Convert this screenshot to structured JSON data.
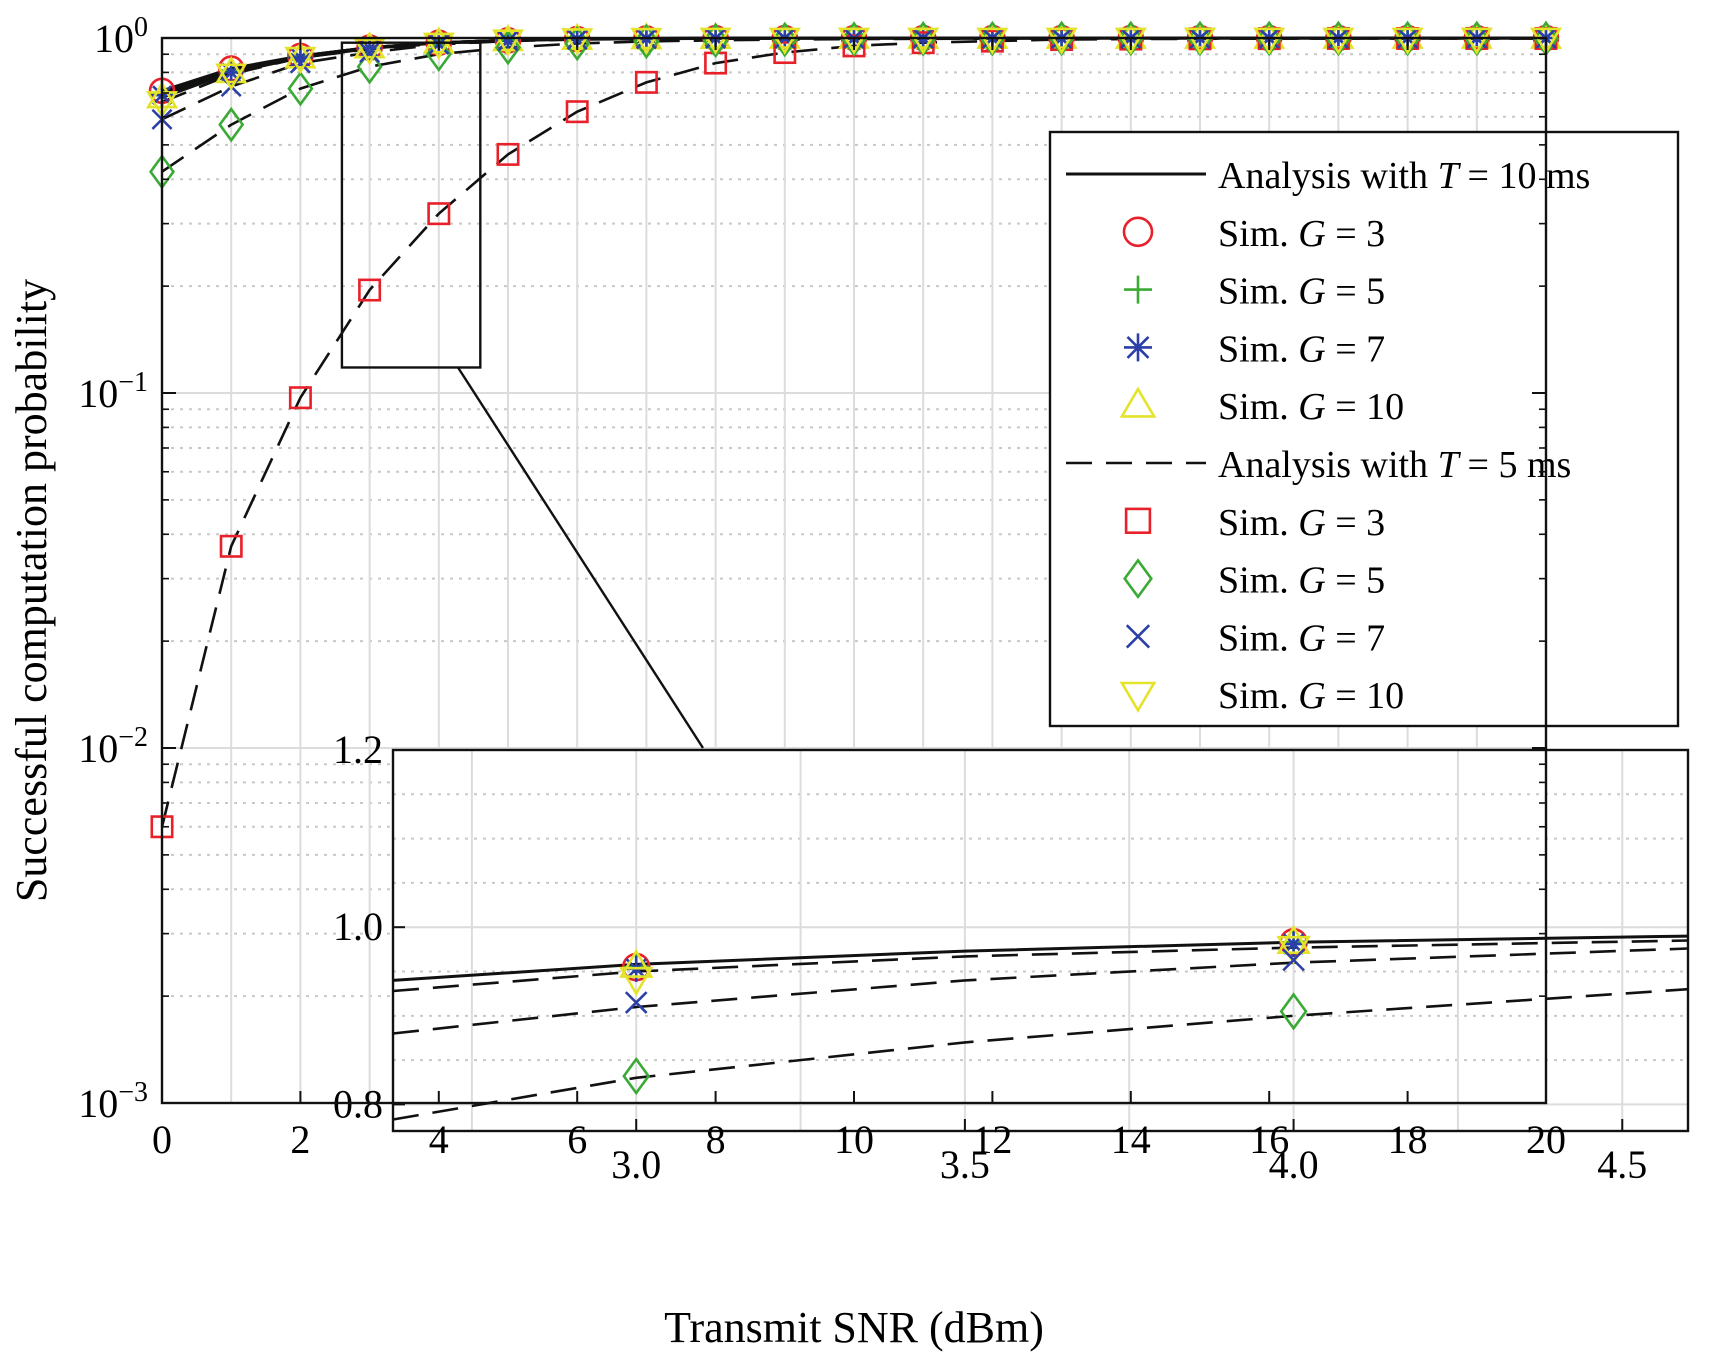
{
  "chart_data": [
    {
      "type": "line",
      "xlabel": "Transmit SNR (dBm)",
      "ylabel": "Successful computation probability",
      "yscale": "log",
      "xlim": [
        0,
        20
      ],
      "ylim": [
        0.001,
        1
      ],
      "grid": true,
      "legend_position": "top-right",
      "x_ticks": [
        "0",
        "2",
        "4",
        "6",
        "8",
        "10",
        "12",
        "14",
        "16",
        "18",
        "20"
      ],
      "y_ticks": [
        {
          "base": "10",
          "exp": "0"
        },
        {
          "base": "10",
          "exp": "−1"
        },
        {
          "base": "10",
          "exp": "−2"
        },
        {
          "base": "10",
          "exp": "−3"
        }
      ],
      "x": [
        0,
        1,
        2,
        3,
        4,
        5,
        6,
        7,
        8,
        9,
        10,
        11,
        12,
        13,
        14,
        15,
        16,
        17,
        18,
        19,
        20
      ],
      "legend": [
        {
          "prefix": "Analysis with",
          "var": "T",
          "val": "= 10 ms",
          "marker": "solid-line"
        },
        {
          "prefix": "Sim.",
          "var": "G",
          "val": "= 3",
          "marker": "circle"
        },
        {
          "prefix": "Sim.",
          "var": "G",
          "val": "= 5",
          "marker": "plus"
        },
        {
          "prefix": "Sim.",
          "var": "G",
          "val": "= 7",
          "marker": "asterisk"
        },
        {
          "prefix": "Sim.",
          "var": "G",
          "val": "= 10",
          "marker": "triangle-up"
        },
        {
          "prefix": "Analysis with",
          "var": "T",
          "val": "= 5 ms",
          "marker": "dashed-line"
        },
        {
          "prefix": "Sim.",
          "var": "G",
          "val": "= 3",
          "marker": "square"
        },
        {
          "prefix": "Sim.",
          "var": "G",
          "val": "= 5",
          "marker": "diamond"
        },
        {
          "prefix": "Sim.",
          "var": "G",
          "val": "= 7",
          "marker": "x"
        },
        {
          "prefix": "Sim.",
          "var": "G",
          "val": "= 10",
          "marker": "triangle-down"
        }
      ],
      "series": [
        {
          "group": "T=10",
          "G": 3,
          "style": "solid",
          "marker": "circle",
          "color": "#e8202a",
          "values": [
            0.71,
            0.82,
            0.89,
            0.94,
            0.97,
            0.985,
            0.993,
            0.997,
            0.999,
            1,
            1,
            1,
            1,
            1,
            1,
            1,
            1,
            1,
            1,
            1,
            1
          ]
        },
        {
          "group": "T=10",
          "G": 5,
          "style": "solid",
          "marker": "plus",
          "color": "#3aaa35",
          "values": [
            0.7,
            0.81,
            0.89,
            0.94,
            0.97,
            0.985,
            0.993,
            0.997,
            0.999,
            1,
            1,
            1,
            1,
            1,
            1,
            1,
            1,
            1,
            1,
            1,
            1
          ]
        },
        {
          "group": "T=10",
          "G": 7,
          "style": "solid",
          "marker": "asterisk",
          "color": "#2b3fa8",
          "values": [
            0.69,
            0.8,
            0.88,
            0.935,
            0.97,
            0.985,
            0.993,
            0.997,
            0.999,
            1,
            1,
            1,
            1,
            1,
            1,
            1,
            1,
            1,
            1,
            1,
            1
          ]
        },
        {
          "group": "T=10",
          "G": 10,
          "style": "solid",
          "marker": "triangle-up",
          "color": "#e3e32a",
          "values": [
            0.68,
            0.8,
            0.88,
            0.94,
            0.97,
            0.985,
            0.993,
            0.997,
            0.999,
            1,
            1,
            1,
            1,
            1,
            1,
            1,
            1,
            1,
            1,
            1,
            1
          ]
        },
        {
          "group": "T=5",
          "G": 3,
          "style": "dashed",
          "marker": "square",
          "color": "#e8202a",
          "values": [
            0.006,
            0.037,
            0.097,
            0.195,
            0.32,
            0.47,
            0.62,
            0.75,
            0.85,
            0.91,
            0.95,
            0.97,
            0.98,
            0.99,
            0.993,
            0.995,
            0.996,
            0.997,
            0.997,
            0.997,
            0.997
          ]
        },
        {
          "group": "T=5",
          "G": 5,
          "style": "dashed",
          "marker": "diamond",
          "color": "#3aaa35",
          "values": [
            0.42,
            0.57,
            0.72,
            0.83,
            0.9,
            0.94,
            0.965,
            0.978,
            0.985,
            0.99,
            0.993,
            0.995,
            0.996,
            0.997,
            0.997,
            0.997,
            0.997,
            0.997,
            0.997,
            0.997,
            0.997
          ]
        },
        {
          "group": "T=5",
          "G": 7,
          "style": "dashed",
          "marker": "x",
          "color": "#2b3fa8",
          "values": [
            0.59,
            0.73,
            0.85,
            0.91,
            0.96,
            0.98,
            0.99,
            0.994,
            0.996,
            0.997,
            0.997,
            0.997,
            0.997,
            0.997,
            0.997,
            0.997,
            0.997,
            0.997,
            0.997,
            0.997,
            0.997
          ]
        },
        {
          "group": "T=5",
          "G": 10,
          "style": "dashed",
          "marker": "triangle-down",
          "color": "#e3e32a",
          "values": [
            0.66,
            0.79,
            0.88,
            0.93,
            0.965,
            0.985,
            0.993,
            0.996,
            0.997,
            0.997,
            0.997,
            0.997,
            0.997,
            0.997,
            0.997,
            0.997,
            0.997,
            0.997,
            0.997,
            0.997,
            0.997
          ]
        }
      ]
    },
    {
      "type": "line",
      "role": "inset-zoom",
      "xlim": [
        2.63,
        4.6
      ],
      "ylim": [
        0.77,
        1.2
      ],
      "zoom_window_x": [
        2.6,
        4.6
      ],
      "zoom_window_y": [
        0.118,
        0.97
      ],
      "x_ticks": [
        "3.0",
        "3.5",
        "4.0",
        "4.5"
      ],
      "x_tick_values": [
        3.0,
        3.5,
        4.0,
        4.5
      ],
      "y_ticks": [
        "0.8",
        "1.0",
        "1.2"
      ],
      "y_tick_values": [
        0.8,
        1.0,
        1.2
      ],
      "curves": [
        {
          "style": "solid",
          "x": [
            2.63,
            3.0,
            3.5,
            4.0,
            4.6
          ],
          "y": [
            0.94,
            0.958,
            0.973,
            0.983,
            0.99
          ]
        },
        {
          "style": "dashed",
          "x": [
            2.63,
            3.0,
            3.5,
            4.0,
            4.6
          ],
          "y": [
            0.928,
            0.95,
            0.967,
            0.977,
            0.985
          ]
        },
        {
          "style": "dashed",
          "x": [
            2.63,
            3.0,
            3.5,
            4.0,
            4.6
          ],
          "y": [
            0.88,
            0.91,
            0.94,
            0.96,
            0.976
          ]
        },
        {
          "style": "dashed",
          "x": [
            2.63,
            3.0,
            3.5,
            4.0,
            4.6
          ],
          "y": [
            0.783,
            0.83,
            0.87,
            0.9,
            0.93
          ]
        }
      ],
      "points": [
        {
          "x": 3.0,
          "y": 0.955,
          "marker": "circle",
          "color": "#e8202a"
        },
        {
          "x": 3.0,
          "y": 0.955,
          "marker": "plus",
          "color": "#3aaa35"
        },
        {
          "x": 3.0,
          "y": 0.953,
          "marker": "asterisk",
          "color": "#2b3fa8"
        },
        {
          "x": 3.0,
          "y": 0.956,
          "marker": "triangle-up",
          "color": "#e3e32a"
        },
        {
          "x": 3.0,
          "y": 0.942,
          "marker": "triangle-down",
          "color": "#e3e32a"
        },
        {
          "x": 3.0,
          "y": 0.915,
          "marker": "x",
          "color": "#2b3fa8"
        },
        {
          "x": 3.0,
          "y": 0.832,
          "marker": "diamond",
          "color": "#3aaa35"
        },
        {
          "x": 4.0,
          "y": 0.983,
          "marker": "circle",
          "color": "#e8202a"
        },
        {
          "x": 4.0,
          "y": 0.983,
          "marker": "plus",
          "color": "#3aaa35"
        },
        {
          "x": 4.0,
          "y": 0.981,
          "marker": "asterisk",
          "color": "#2b3fa8"
        },
        {
          "x": 4.0,
          "y": 0.983,
          "marker": "triangle-up",
          "color": "#e3e32a"
        },
        {
          "x": 4.0,
          "y": 0.977,
          "marker": "triangle-down",
          "color": "#e3e32a"
        },
        {
          "x": 4.0,
          "y": 0.963,
          "marker": "x",
          "color": "#2b3fa8"
        },
        {
          "x": 4.0,
          "y": 0.905,
          "marker": "diamond",
          "color": "#3aaa35"
        }
      ]
    }
  ]
}
